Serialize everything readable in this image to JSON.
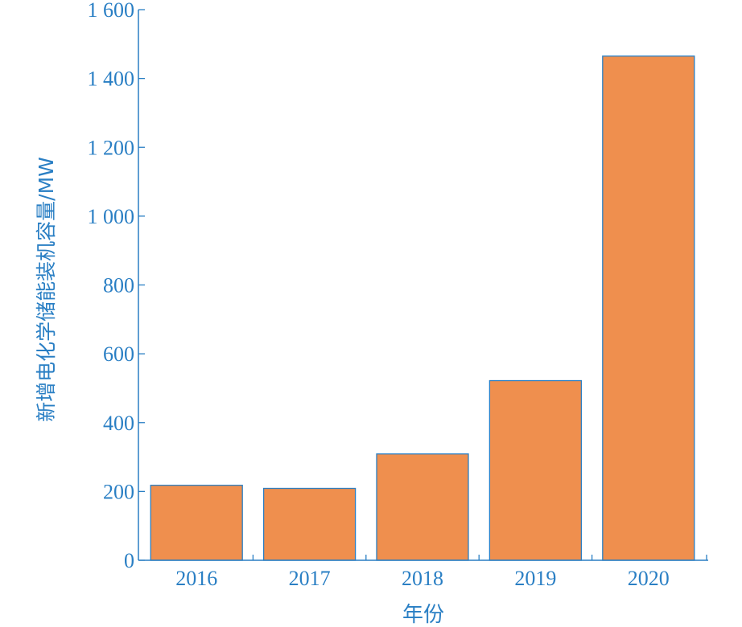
{
  "chart_data": {
    "type": "bar",
    "categories": [
      "2016",
      "2017",
      "2018",
      "2019",
      "2020"
    ],
    "values": [
      218,
      209,
      309,
      522,
      1465
    ],
    "title": "",
    "xlabel": "年份",
    "ylabel": "新增电化学储能装机容量/MW",
    "ylim": [
      0,
      1600
    ],
    "yticks": [
      0,
      200,
      400,
      600,
      800,
      1000,
      1200,
      1400,
      1600
    ],
    "ytick_labels": [
      "0",
      "200",
      "400",
      "600",
      "800",
      "1 000",
      "1 200",
      "1 400",
      "1 600"
    ],
    "grid": false,
    "legend": "none",
    "colors": {
      "bar_fill": "#ef8f4e",
      "bar_stroke": "#2a7fc4",
      "axis": "#2a7fc4",
      "text": "#2a7fc4"
    }
  }
}
